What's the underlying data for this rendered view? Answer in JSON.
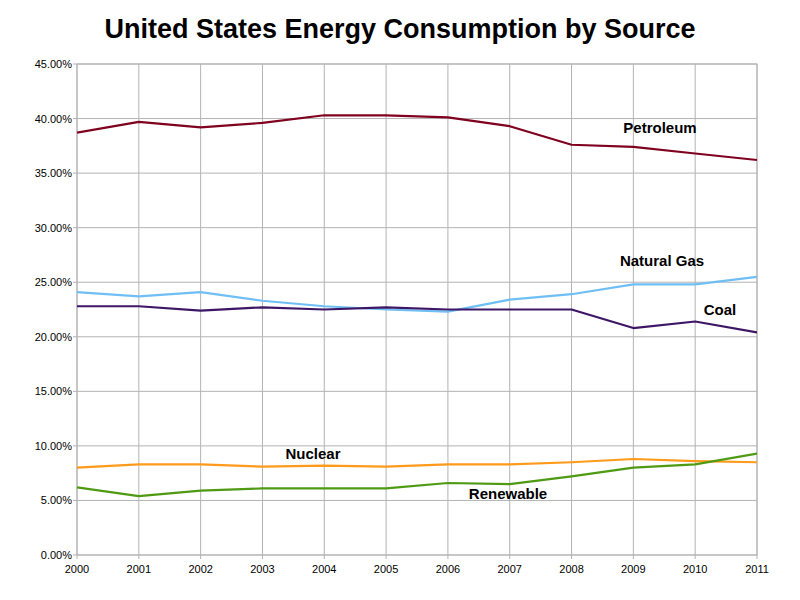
{
  "chart_data": {
    "type": "line",
    "title": "United States Energy Consumption by Source",
    "x": [
      2000,
      2001,
      2002,
      2003,
      2004,
      2005,
      2006,
      2007,
      2008,
      2009,
      2010,
      2011
    ],
    "xlim": [
      2000,
      2011
    ],
    "xticks": [
      2000,
      2001,
      2002,
      2003,
      2004,
      2005,
      2006,
      2007,
      2008,
      2009,
      2010,
      2011
    ],
    "ylim": [
      0,
      45
    ],
    "yticks": [
      {
        "value": 0,
        "label": "0.00%"
      },
      {
        "value": 5,
        "label": "5.00%"
      },
      {
        "value": 10,
        "label": "10.00%"
      },
      {
        "value": 15,
        "label": "15.00%"
      },
      {
        "value": 20,
        "label": "20.00%"
      },
      {
        "value": 25,
        "label": "25.00%"
      },
      {
        "value": 30,
        "label": "30.00%"
      },
      {
        "value": 35,
        "label": "35.00%"
      },
      {
        "value": 40,
        "label": "40.00%"
      },
      {
        "value": 45,
        "label": "45.00%"
      }
    ],
    "grid": true,
    "series": [
      {
        "name": "Petroleum",
        "color": "#800020",
        "values": [
          38.7,
          39.7,
          39.2,
          39.6,
          40.3,
          40.3,
          40.1,
          39.3,
          37.6,
          37.4,
          36.8,
          36.2
        ]
      },
      {
        "name": "Natural Gas",
        "color": "#6fbff5",
        "values": [
          24.1,
          23.7,
          24.1,
          23.3,
          22.8,
          22.5,
          22.3,
          23.4,
          23.9,
          24.8,
          24.8,
          25.5
        ]
      },
      {
        "name": "Coal",
        "color": "#3d1766",
        "values": [
          22.8,
          22.8,
          22.4,
          22.7,
          22.5,
          22.7,
          22.5,
          22.5,
          22.5,
          20.8,
          21.4,
          20.4
        ]
      },
      {
        "name": "Nuclear",
        "color": "#ff9a1a",
        "values": [
          8.0,
          8.3,
          8.3,
          8.1,
          8.2,
          8.1,
          8.3,
          8.3,
          8.5,
          8.8,
          8.6,
          8.5
        ]
      },
      {
        "name": "Renewable",
        "color": "#4e9a12",
        "values": [
          6.2,
          5.4,
          5.9,
          6.1,
          6.1,
          6.1,
          6.6,
          6.5,
          7.2,
          8.0,
          8.3,
          9.3
        ]
      }
    ]
  }
}
